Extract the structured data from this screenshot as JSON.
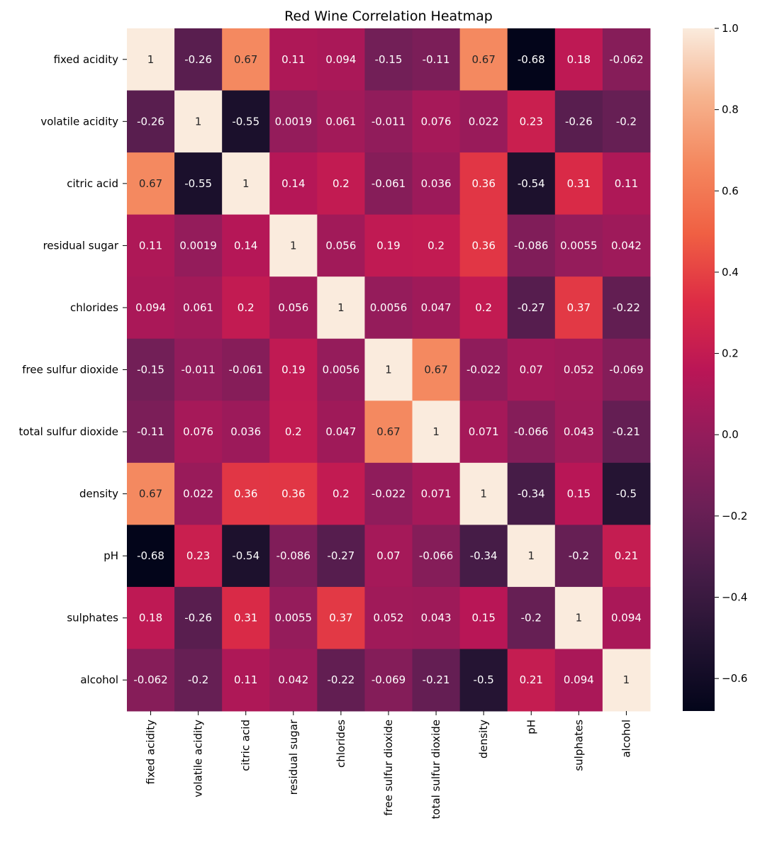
{
  "chart_data": {
    "type": "heatmap",
    "title": "Red Wine Correlation Heatmap",
    "colormap": "rocket",
    "xlabels": [
      "fixed acidity",
      "volatile acidity",
      "citric acid",
      "residual sugar",
      "chlorides",
      "free sulfur dioxide",
      "total sulfur dioxide",
      "density",
      "pH",
      "sulphates",
      "alcohol"
    ],
    "ylabels": [
      "fixed acidity",
      "volatile acidity",
      "citric acid",
      "residual sugar",
      "chlorides",
      "free sulfur dioxide",
      "total sulfur dioxide",
      "density",
      "pH",
      "sulphates",
      "alcohol"
    ],
    "values": [
      [
        1,
        -0.26,
        0.67,
        0.11,
        0.094,
        -0.15,
        -0.11,
        0.67,
        -0.68,
        0.18,
        -0.062
      ],
      [
        -0.26,
        1,
        -0.55,
        0.0019,
        0.061,
        -0.011,
        0.076,
        0.022,
        0.23,
        -0.26,
        -0.2
      ],
      [
        0.67,
        -0.55,
        1,
        0.14,
        0.2,
        -0.061,
        0.036,
        0.36,
        -0.54,
        0.31,
        0.11
      ],
      [
        0.11,
        0.0019,
        0.14,
        1,
        0.056,
        0.19,
        0.2,
        0.36,
        -0.086,
        0.0055,
        0.042
      ],
      [
        0.094,
        0.061,
        0.2,
        0.056,
        1,
        0.0056,
        0.047,
        0.2,
        -0.27,
        0.37,
        -0.22
      ],
      [
        -0.15,
        -0.011,
        -0.061,
        0.19,
        0.0056,
        1,
        0.67,
        -0.022,
        0.07,
        0.052,
        -0.069
      ],
      [
        -0.11,
        0.076,
        0.036,
        0.2,
        0.047,
        0.67,
        1,
        0.071,
        -0.066,
        0.043,
        -0.21
      ],
      [
        0.67,
        0.022,
        0.36,
        0.36,
        0.2,
        -0.022,
        0.071,
        1,
        -0.34,
        0.15,
        -0.5
      ],
      [
        -0.68,
        0.23,
        -0.54,
        -0.086,
        -0.27,
        0.07,
        -0.066,
        -0.34,
        1,
        -0.2,
        0.21
      ],
      [
        0.18,
        -0.26,
        0.31,
        0.0055,
        0.37,
        0.052,
        0.043,
        0.15,
        -0.2,
        1,
        0.094
      ],
      [
        -0.062,
        -0.2,
        0.11,
        0.042,
        -0.22,
        -0.069,
        -0.21,
        -0.5,
        0.21,
        0.094,
        1
      ]
    ],
    "colorbar": {
      "range": [
        -0.68,
        1.0
      ],
      "ticks": [
        1.0,
        0.8,
        0.6,
        0.4,
        0.2,
        0.0,
        -0.2,
        -0.4,
        -0.6
      ],
      "tick_labels": [
        "1.0",
        "0.8",
        "0.6",
        "0.4",
        "0.2",
        "0.0",
        "−0.2",
        "−0.4",
        "−0.6"
      ]
    }
  }
}
